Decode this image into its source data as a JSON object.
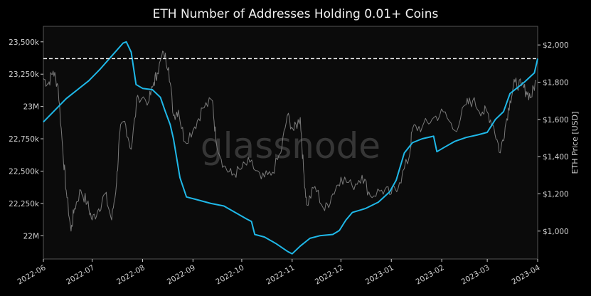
{
  "chart_data": {
    "type": "line",
    "title": "ETH Number of Addresses Holding 0.01+ Coins",
    "watermark": "glassnode",
    "ylabel_right": "ETH Price [USD]",
    "x_ticks": [
      "2022-06",
      "2022-07",
      "2022-08",
      "2022-09",
      "2022-10",
      "2022-11",
      "2022-12",
      "2023-01",
      "2023-02",
      "2023-03",
      "2023-04"
    ],
    "y_left": {
      "ticks": [
        22000000,
        22250000,
        22500000,
        22750000,
        23000000,
        23250000,
        23500000
      ],
      "tick_labels": [
        "22M",
        "22,250k",
        "22,500k",
        "22,750k",
        "23M",
        "23,250k",
        "23,500k"
      ],
      "lim": [
        21820000,
        23620000
      ]
    },
    "y_right": {
      "ticks": [
        1000,
        1200,
        1400,
        1600,
        1800,
        2000
      ],
      "tick_labels": [
        "$1,000",
        "$1,200",
        "$1,400",
        "$1,600",
        "$1,800",
        "$2,000"
      ],
      "lim": [
        850,
        2100
      ]
    },
    "x_range": [
      "2022-06-01",
      "2023-04-01"
    ],
    "reference_line": {
      "value": 23370000,
      "style": "dashed",
      "color": "#ffffff"
    },
    "series": [
      {
        "axis": "left",
        "color": "#1fb8e8",
        "points": [
          [
            "2022-06-01",
            22880000
          ],
          [
            "2022-06-08",
            22970000
          ],
          [
            "2022-06-15",
            23060000
          ],
          [
            "2022-06-22",
            23130000
          ],
          [
            "2022-06-29",
            23200000
          ],
          [
            "2022-07-06",
            23290000
          ],
          [
            "2022-07-13",
            23390000
          ],
          [
            "2022-07-20",
            23490000
          ],
          [
            "2022-07-22",
            23500000
          ],
          [
            "2022-07-25",
            23420000
          ],
          [
            "2022-07-28",
            23170000
          ],
          [
            "2022-08-01",
            23140000
          ],
          [
            "2022-08-07",
            23130000
          ],
          [
            "2022-08-12",
            23070000
          ],
          [
            "2022-08-15",
            22960000
          ],
          [
            "2022-08-18",
            22860000
          ],
          [
            "2022-08-20",
            22750000
          ],
          [
            "2022-08-24",
            22450000
          ],
          [
            "2022-08-28",
            22300000
          ],
          [
            "2022-09-03",
            22280000
          ],
          [
            "2022-09-12",
            22250000
          ],
          [
            "2022-09-20",
            22230000
          ],
          [
            "2022-09-27",
            22180000
          ],
          [
            "2022-10-04",
            22130000
          ],
          [
            "2022-10-07",
            22110000
          ],
          [
            "2022-10-09",
            22010000
          ],
          [
            "2022-10-15",
            21990000
          ],
          [
            "2022-10-22",
            21940000
          ],
          [
            "2022-10-29",
            21880000
          ],
          [
            "2022-11-01",
            21860000
          ],
          [
            "2022-11-06",
            21920000
          ],
          [
            "2022-11-12",
            21980000
          ],
          [
            "2022-11-18",
            22000000
          ],
          [
            "2022-11-26",
            22010000
          ],
          [
            "2022-11-30",
            22040000
          ],
          [
            "2022-12-04",
            22120000
          ],
          [
            "2022-12-08",
            22180000
          ],
          [
            "2022-12-16",
            22210000
          ],
          [
            "2022-12-24",
            22260000
          ],
          [
            "2022-12-31",
            22340000
          ],
          [
            "2023-01-04",
            22430000
          ],
          [
            "2023-01-09",
            22640000
          ],
          [
            "2023-01-14",
            22720000
          ],
          [
            "2023-01-20",
            22750000
          ],
          [
            "2023-01-27",
            22770000
          ],
          [
            "2023-01-29",
            22650000
          ],
          [
            "2023-02-02",
            22680000
          ],
          [
            "2023-02-09",
            22730000
          ],
          [
            "2023-02-16",
            22760000
          ],
          [
            "2023-02-23",
            22780000
          ],
          [
            "2023-03-01",
            22800000
          ],
          [
            "2023-03-06",
            22900000
          ],
          [
            "2023-03-11",
            22960000
          ],
          [
            "2023-03-15",
            23100000
          ],
          [
            "2023-03-19",
            23140000
          ],
          [
            "2023-03-24",
            23190000
          ],
          [
            "2023-03-30",
            23260000
          ],
          [
            "2023-04-01",
            23370000
          ]
        ]
      },
      {
        "axis": "right",
        "color": "#7a7a7a",
        "points": [
          [
            "2022-06-01",
            1820
          ],
          [
            "2022-06-04",
            1790
          ],
          [
            "2022-06-07",
            1860
          ],
          [
            "2022-06-10",
            1780
          ],
          [
            "2022-06-13",
            1430
          ],
          [
            "2022-06-15",
            1220
          ],
          [
            "2022-06-18",
            1000
          ],
          [
            "2022-06-20",
            1120
          ],
          [
            "2022-06-24",
            1220
          ],
          [
            "2022-06-28",
            1150
          ],
          [
            "2022-07-01",
            1060
          ],
          [
            "2022-07-05",
            1120
          ],
          [
            "2022-07-09",
            1200
          ],
          [
            "2022-07-13",
            1060
          ],
          [
            "2022-07-16",
            1260
          ],
          [
            "2022-07-18",
            1530
          ],
          [
            "2022-07-21",
            1590
          ],
          [
            "2022-07-25",
            1440
          ],
          [
            "2022-07-29",
            1730
          ],
          [
            "2022-08-05",
            1700
          ],
          [
            "2022-08-08",
            1800
          ],
          [
            "2022-08-10",
            1850
          ],
          [
            "2022-08-14",
            1960
          ],
          [
            "2022-08-17",
            1880
          ],
          [
            "2022-08-20",
            1620
          ],
          [
            "2022-08-23",
            1650
          ],
          [
            "2022-08-27",
            1480
          ],
          [
            "2022-09-02",
            1560
          ],
          [
            "2022-09-07",
            1660
          ],
          [
            "2022-09-13",
            1700
          ],
          [
            "2022-09-15",
            1500
          ],
          [
            "2022-09-20",
            1350
          ],
          [
            "2022-09-25",
            1300
          ],
          [
            "2022-09-30",
            1330
          ],
          [
            "2022-10-06",
            1370
          ],
          [
            "2022-10-13",
            1280
          ],
          [
            "2022-10-19",
            1300
          ],
          [
            "2022-10-25",
            1420
          ],
          [
            "2022-10-29",
            1620
          ],
          [
            "2022-11-02",
            1540
          ],
          [
            "2022-11-06",
            1610
          ],
          [
            "2022-11-08",
            1330
          ],
          [
            "2022-11-10",
            1140
          ],
          [
            "2022-11-15",
            1240
          ],
          [
            "2022-11-21",
            1110
          ],
          [
            "2022-11-26",
            1200
          ],
          [
            "2022-12-01",
            1290
          ],
          [
            "2022-12-08",
            1240
          ],
          [
            "2022-12-14",
            1300
          ],
          [
            "2022-12-19",
            1190
          ],
          [
            "2022-12-26",
            1220
          ],
          [
            "2023-01-01",
            1200
          ],
          [
            "2023-01-06",
            1260
          ],
          [
            "2023-01-12",
            1400
          ],
          [
            "2023-01-14",
            1550
          ],
          [
            "2023-01-20",
            1560
          ],
          [
            "2023-01-26",
            1600
          ],
          [
            "2023-02-02",
            1640
          ],
          [
            "2023-02-09",
            1540
          ],
          [
            "2023-02-16",
            1680
          ],
          [
            "2023-02-20",
            1700
          ],
          [
            "2023-02-26",
            1640
          ],
          [
            "2023-03-01",
            1640
          ],
          [
            "2023-03-05",
            1560
          ],
          [
            "2023-03-09",
            1420
          ],
          [
            "2023-03-12",
            1560
          ],
          [
            "2023-03-15",
            1700
          ],
          [
            "2023-03-18",
            1800
          ],
          [
            "2023-03-22",
            1780
          ],
          [
            "2023-03-25",
            1750
          ],
          [
            "2023-03-28",
            1720
          ],
          [
            "2023-03-31",
            1810
          ]
        ]
      }
    ],
    "grid": false,
    "background": "#000000",
    "axis_color": "#cfcfcf"
  }
}
